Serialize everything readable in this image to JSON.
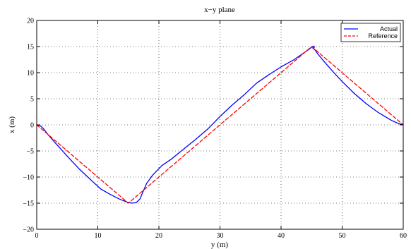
{
  "chart_data": {
    "type": "line",
    "title": "x−y plane",
    "xlabel": "y (m)",
    "ylabel": "x (m)",
    "xlim": [
      0,
      60
    ],
    "ylim": [
      -20,
      20
    ],
    "xticks": [
      0,
      10,
      20,
      30,
      40,
      50,
      60
    ],
    "yticks": [
      -20,
      -15,
      -10,
      -5,
      0,
      5,
      10,
      15,
      20
    ],
    "xtick_labels": [
      "0",
      "10",
      "20",
      "30",
      "40",
      "50",
      "60"
    ],
    "ytick_labels": [
      "−20",
      "−15",
      "−10",
      "−5",
      "0",
      "5",
      "10",
      "15",
      "20"
    ],
    "grid": true,
    "legend": "top-right",
    "series": [
      {
        "name": "Actual",
        "color": "#0000ff",
        "style": "solid",
        "x": [
          0,
          0.5,
          1.0,
          1.8,
          3,
          5,
          7,
          9,
          10.5,
          12,
          13.5,
          14.8,
          15.6,
          16.3,
          16.9,
          17.4,
          18,
          19,
          20.5,
          22,
          24,
          26,
          28,
          30,
          32,
          34,
          36,
          38,
          40,
          42,
          43.5,
          44.6,
          45.0,
          45.3,
          45.5,
          45.2,
          45.6,
          46,
          47,
          48.5,
          50,
          52,
          54,
          56,
          58,
          59.3,
          60
        ],
        "y": [
          0,
          -0.1,
          -0.6,
          -1.8,
          -3.4,
          -6.0,
          -8.5,
          -10.7,
          -12.3,
          -13.3,
          -14.2,
          -14.8,
          -15.0,
          -14.9,
          -14.2,
          -12.8,
          -11.2,
          -9.6,
          -7.8,
          -6.6,
          -4.7,
          -2.8,
          -0.8,
          1.6,
          3.8,
          5.8,
          8.0,
          9.6,
          11.1,
          12.4,
          13.6,
          14.5,
          14.9,
          15.1,
          14.9,
          14.7,
          14.3,
          13.6,
          12.2,
          10.2,
          8.3,
          6.0,
          4.0,
          2.3,
          0.9,
          0.2,
          0
        ]
      },
      {
        "name": "Reference",
        "color": "#ff0000",
        "style": "dashed",
        "x": [
          0,
          15,
          45,
          60
        ],
        "y": [
          0,
          -15,
          15,
          0
        ]
      }
    ]
  }
}
